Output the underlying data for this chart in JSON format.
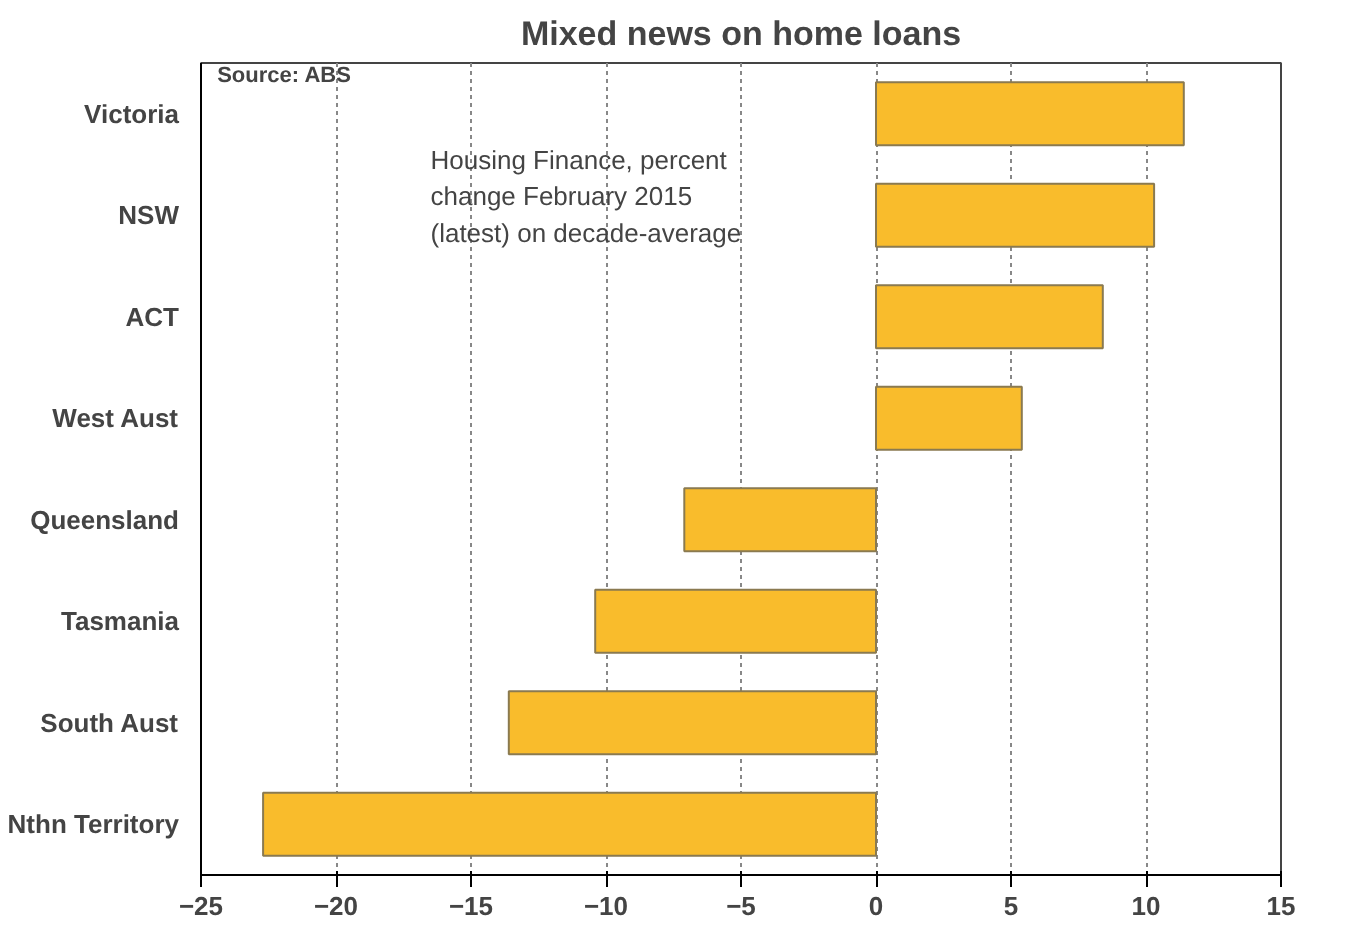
{
  "chart_data": {
    "type": "bar",
    "orientation": "horizontal",
    "title": "Mixed news on home loans",
    "categories": [
      "Victoria",
      "NSW",
      "ACT",
      "West Aust",
      "Queensland",
      "Tasmania",
      "South Aust",
      "Nthn Territory"
    ],
    "values": [
      11.4,
      10.3,
      8.4,
      5.4,
      -7.1,
      -10.4,
      -13.6,
      -22.7
    ],
    "color": "#f9bc2c",
    "xlim": [
      -25,
      15
    ],
    "xticks": [
      -25,
      -20,
      -15,
      -10,
      -5,
      0,
      5,
      10,
      15
    ],
    "grid": "x",
    "annotations": [
      "Source: ABS",
      "Housing Finance, percent change February 2015 (latest) on decade-average"
    ]
  }
}
